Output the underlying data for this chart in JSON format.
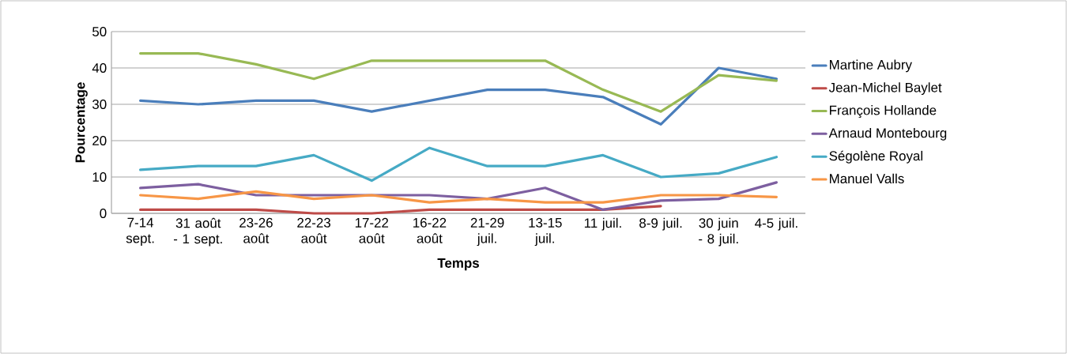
{
  "chart_data": {
    "type": "line",
    "xlabel": "Temps",
    "ylabel": "Pourcentage",
    "categories": [
      "7-14 sept.",
      "31 août - 1 sept.",
      "23-26 août",
      "22-23 août",
      "17-22 août",
      "16-22 août",
      "21-29 juil.",
      "13-15 juil.",
      "11 juil.",
      "8-9 juil.",
      "30 juin - 8 juil.",
      "4-5 juil."
    ],
    "series": [
      {
        "name": "Martine Aubry",
        "color": "#4a7ebb",
        "values": [
          31,
          30,
          31,
          31,
          28,
          31,
          34,
          34,
          32,
          24.5,
          40,
          37
        ]
      },
      {
        "name": "Jean-Michel Baylet",
        "color": "#be4b48",
        "values": [
          1,
          1,
          1,
          0,
          0,
          1,
          1,
          1,
          1,
          2,
          null,
          null
        ]
      },
      {
        "name": "François Hollande",
        "color": "#98b954",
        "values": [
          44,
          44,
          41,
          37,
          42,
          42,
          42,
          42,
          34,
          28,
          38,
          36.5
        ]
      },
      {
        "name": "Arnaud Montebourg",
        "color": "#7d5fa0",
        "values": [
          7,
          8,
          5,
          5,
          5,
          5,
          4,
          7,
          1,
          3.5,
          4,
          8.5
        ]
      },
      {
        "name": "Ségolène Royal",
        "color": "#46aac5",
        "values": [
          12,
          13,
          13,
          16,
          9,
          18,
          13,
          13,
          16,
          10,
          11,
          15.5
        ]
      },
      {
        "name": "Manuel Valls",
        "color": "#f79646",
        "values": [
          5,
          4,
          6,
          4,
          5,
          3,
          4,
          3,
          3,
          5,
          5,
          4.5
        ]
      }
    ],
    "ylim": [
      0,
      50
    ],
    "yticks": [
      0,
      10,
      20,
      30,
      40,
      50
    ],
    "grid": "y",
    "legend": "right",
    "marker": "none",
    "line_style": "solid"
  }
}
